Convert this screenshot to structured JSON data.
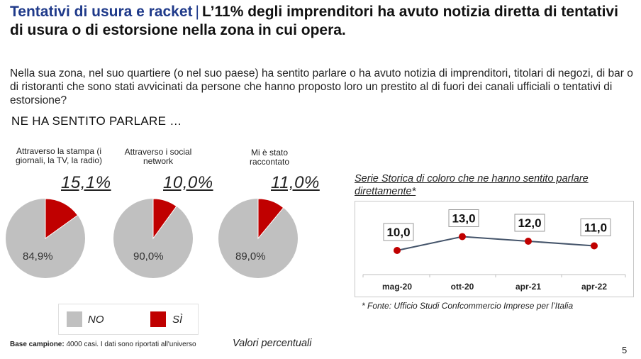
{
  "title": {
    "accent": "Tentativi di usura e racket",
    "separator": "|",
    "main": "L’11% degli imprenditori ha avuto notizia diretta di tentativi di usura o di estorsione nella zona in cui opera."
  },
  "question": "Nella sua zona, nel suo quartiere (o nel suo paese) ha sentito parlare o ha avuto notizia di imprenditori, titolari di negozi, di bar o di ristoranti che sono stati avvicinati da persone che hanno proposto loro un prestito al di fuori dei canali ufficiali  o tentativi di estorsione?",
  "subheading": "NE HA SENTITO PARLARE …",
  "colors": {
    "no": "#c0c0c0",
    "si": "#c00000",
    "title_accent": "#1f3a8a",
    "line": "#44546a"
  },
  "legend": {
    "no_label": "NO",
    "si_label": "SÌ"
  },
  "chart_data": [
    {
      "type": "pie",
      "charts": [
        {
          "label": "Attraverso la stampa (i giornali, la TV, la radio)",
          "si_pct_label": "15,1%",
          "no_pct_label": "84,9%",
          "si": 15.1,
          "no": 84.9
        },
        {
          "label": "Attraverso i social network",
          "si_pct_label": "10,0%",
          "no_pct_label": "90,0%",
          "si": 10.0,
          "no": 90.0
        },
        {
          "label": "Mi è stato raccontato",
          "si_pct_label": "11,0%",
          "no_pct_label": "89,0%",
          "si": 11.0,
          "no": 89.0
        }
      ],
      "legend": [
        "NO",
        "SÌ"
      ]
    },
    {
      "type": "line",
      "title": "Serie Storica di coloro che ne hanno sentito parlare direttamente*",
      "categories": [
        "mag-20",
        "ott-20",
        "apr-21",
        "apr-22"
      ],
      "values": [
        10.0,
        13.0,
        12.0,
        11.0
      ],
      "value_labels": [
        "10,0",
        "13,0",
        "12,0",
        "11,0"
      ],
      "source": "* Fonte: Ufficio Studi Confcommercio Imprese per l’Italia"
    }
  ],
  "footer": {
    "base_bold": "Base campione:",
    "base_text": " 4000 casi. I dati sono riportati all'universo",
    "values_note": "Valori percentuali",
    "page_number": "5"
  }
}
